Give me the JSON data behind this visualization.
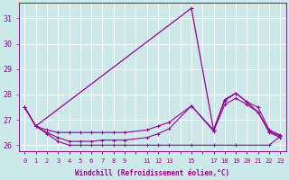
{
  "xlabel": "Windchill (Refroidissement éolien,°C)",
  "bg_color": "#cce8e8",
  "grid_color": "#ffffff",
  "line_color": "#990099",
  "xtick_labels": [
    "0",
    "1",
    "2",
    "3",
    "4",
    "5",
    "6",
    "7",
    "8",
    "9",
    "",
    "11",
    "12",
    "13",
    "",
    "15",
    "",
    "17",
    "18",
    "19",
    "20",
    "21",
    "22",
    "23"
  ],
  "xlim": [
    -0.5,
    23.5
  ],
  "ylim": [
    25.75,
    31.6
  ],
  "yticks": [
    26,
    27,
    28,
    29,
    30,
    31
  ],
  "series_spike": {
    "x": [
      0,
      1,
      15,
      17,
      18,
      19,
      20,
      21,
      22,
      23
    ],
    "y": [
      27.5,
      26.75,
      31.4,
      26.6,
      27.8,
      28.05,
      27.7,
      27.3,
      26.55,
      26.35
    ]
  },
  "series_upper": {
    "x": [
      0,
      1,
      2,
      3,
      4,
      5,
      6,
      7,
      8,
      9,
      11,
      12,
      13,
      15,
      17,
      18,
      19,
      20,
      21,
      22,
      23
    ],
    "y": [
      27.5,
      26.75,
      26.6,
      26.5,
      26.5,
      26.5,
      26.5,
      26.5,
      26.5,
      26.5,
      26.6,
      26.75,
      26.9,
      27.55,
      26.6,
      27.75,
      28.05,
      27.7,
      27.5,
      26.6,
      26.4
    ]
  },
  "series_mid": {
    "x": [
      0,
      1,
      2,
      3,
      4,
      5,
      6,
      7,
      8,
      9,
      11,
      12,
      13,
      15,
      17,
      18,
      19,
      20,
      21,
      22,
      23
    ],
    "y": [
      27.5,
      26.75,
      26.5,
      26.3,
      26.15,
      26.15,
      26.15,
      26.2,
      26.2,
      26.2,
      26.3,
      26.45,
      26.65,
      27.55,
      26.55,
      27.6,
      27.85,
      27.6,
      27.3,
      26.5,
      26.3
    ]
  },
  "series_flat": {
    "x": [
      0,
      1,
      2,
      3,
      4,
      5,
      6,
      7,
      8,
      9,
      11,
      12,
      13,
      15,
      17,
      19,
      22,
      23
    ],
    "y": [
      27.5,
      26.75,
      26.45,
      26.15,
      26.0,
      26.0,
      26.0,
      26.0,
      26.0,
      26.0,
      26.0,
      26.0,
      26.0,
      26.0,
      26.0,
      26.0,
      26.0,
      26.35
    ]
  }
}
